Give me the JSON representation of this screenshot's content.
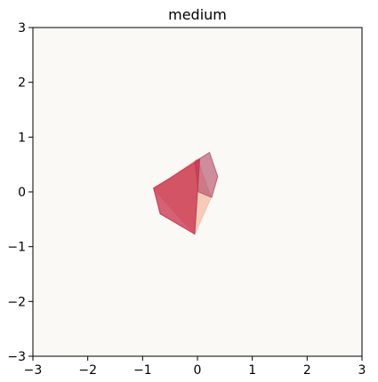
{
  "chart_data": {
    "type": "polygon",
    "title": "medium",
    "xlabel": "",
    "ylabel": "",
    "xlim": [
      -3,
      3
    ],
    "ylim": [
      -3,
      3
    ],
    "xticks": [
      -3,
      -2,
      -1,
      0,
      1,
      2,
      3
    ],
    "yticks": [
      -3,
      -2,
      -1,
      0,
      1,
      2,
      3
    ],
    "grid": false,
    "background_color": "#faf9f5",
    "faces": [
      {
        "fill": "#f4b9a0",
        "opacity": 0.7,
        "points": [
          [
            0.0,
            0.6
          ],
          [
            0.25,
            -0.1
          ],
          [
            -0.05,
            -0.78
          ],
          [
            -0.8,
            0.05
          ]
        ]
      },
      {
        "fill": "#b04561",
        "opacity": 0.6,
        "points": [
          [
            -0.05,
            0.55
          ],
          [
            0.22,
            0.72
          ],
          [
            0.37,
            0.28
          ],
          [
            0.26,
            -0.1
          ],
          [
            0.02,
            0.0
          ]
        ]
      },
      {
        "fill": "#c72d4a",
        "opacity": 0.75,
        "points": [
          [
            0.04,
            0.6
          ],
          [
            -0.05,
            -0.77
          ],
          [
            -0.68,
            -0.4
          ],
          [
            -0.8,
            0.07
          ],
          [
            -0.5,
            0.25
          ]
        ]
      }
    ]
  }
}
